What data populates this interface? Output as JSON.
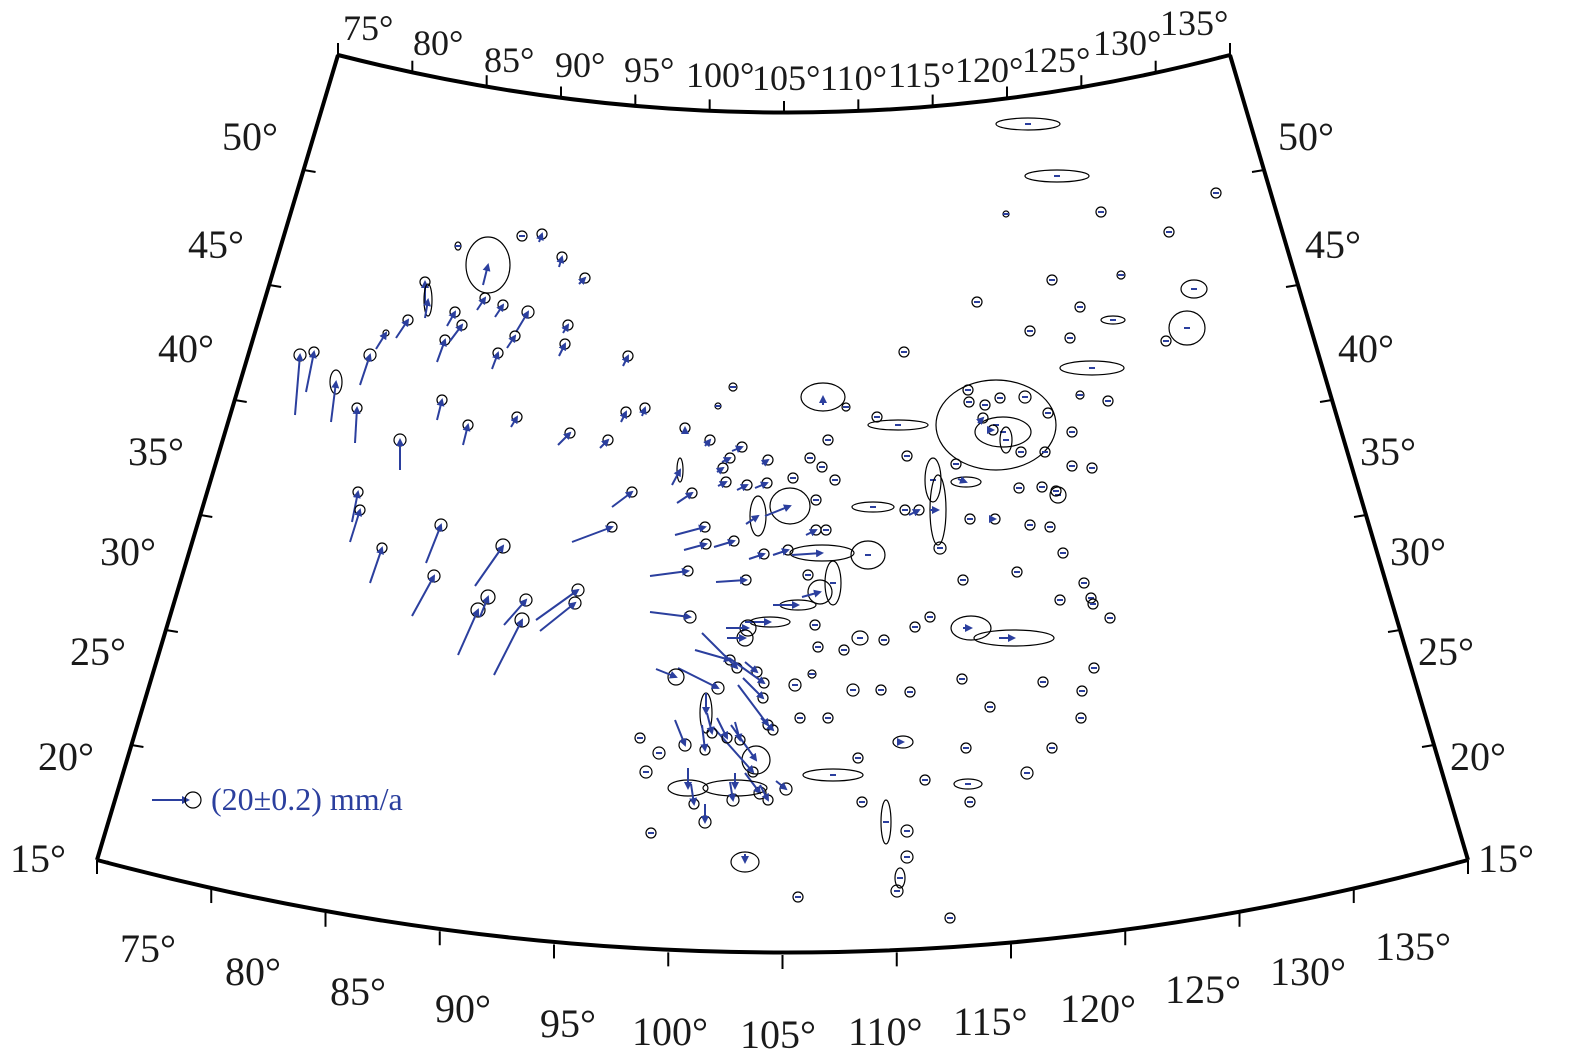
{
  "map": {
    "lon_labels": [
      "75°",
      "80°",
      "85°",
      "90°",
      "95°",
      "100°",
      "105°",
      "110°",
      "115°",
      "120°",
      "125°",
      "130°",
      "135°"
    ],
    "lat_labels": [
      "15°",
      "20°",
      "25°",
      "30°",
      "35°",
      "40°",
      "45°",
      "50°"
    ],
    "legend": {
      "text": "(20±0.2) mm/a"
    },
    "colors": {
      "vector": "#2b3f9e",
      "frame": "#000000",
      "ellipse": "#000000"
    }
  }
}
